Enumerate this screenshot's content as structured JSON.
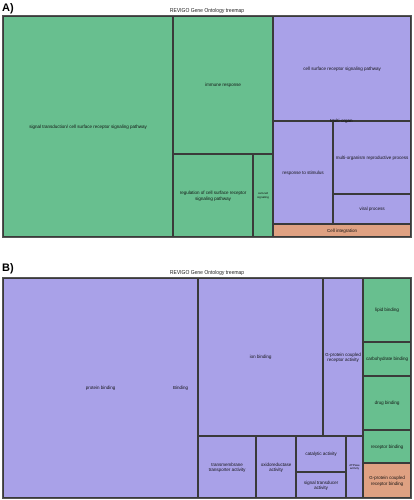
{
  "panels": [
    {
      "label": "A)",
      "title": "REVIGO Gene Ontology treemap",
      "cells": [
        "signal transduction/ cell surface receptor signaling pathway",
        "immune response",
        "regulation of cell surface receptor signaling pathway",
        "cell-cell signaling",
        "cell surface receptor signaling pathway",
        "response to stimulus",
        "multi-organism reproductive process",
        "viral process",
        "Cell integration"
      ],
      "groups": [
        "Multi-organ"
      ]
    },
    {
      "label": "B)",
      "title": "REVIGO Gene Ontology treemap",
      "cells": [
        "protein binding",
        "ion binding",
        "G-protein coupled receptor activity",
        "transmembrane transporter activity",
        "oxidoreductase activity",
        "catalytic activity",
        "signal transducer activity",
        "ATPase activity",
        "lipid binding",
        "carbohydrate binding",
        "drug binding",
        "receptor binding",
        "G-protein coupled receptor binding"
      ],
      "groups": [
        "Binding"
      ]
    }
  ]
}
